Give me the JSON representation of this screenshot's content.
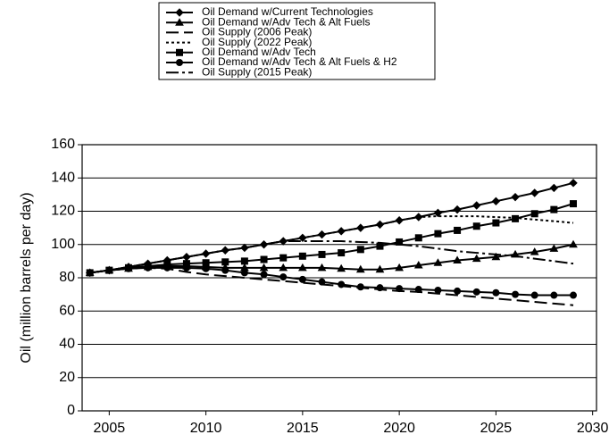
{
  "chart_data": {
    "type": "line",
    "y_label": "Oil (million barrels per day)",
    "x": [
      2004,
      2005,
      2006,
      2007,
      2008,
      2009,
      2010,
      2011,
      2012,
      2013,
      2014,
      2015,
      2016,
      2017,
      2018,
      2019,
      2020,
      2021,
      2022,
      2023,
      2024,
      2025,
      2026,
      2027,
      2028,
      2029
    ],
    "xlim": [
      2003.6,
      2030.2
    ],
    "xticks": [
      2005,
      2010,
      2015,
      2020,
      2025,
      2030
    ],
    "ylim": [
      0,
      160
    ],
    "yticks": [
      0,
      20,
      40,
      60,
      80,
      100,
      120,
      140,
      160
    ],
    "grid": true,
    "legend": "top",
    "series": [
      {
        "name": "Oil Demand w/Current Technologies",
        "color": "#000000",
        "marker": "diamond",
        "dash": "solid",
        "values": [
          83,
          84.5,
          86.5,
          88.5,
          90.5,
          92.5,
          94.5,
          96.5,
          98,
          100,
          102,
          104,
          106,
          108,
          110,
          112,
          114.5,
          116.5,
          119,
          121,
          123.5,
          126,
          128.5,
          131,
          134,
          137
        ]
      },
      {
        "name": "Oil Demand w/Adv Tech & Alt Fuels",
        "color": "#000000",
        "marker": "triangle",
        "dash": "solid",
        "values": [
          83,
          84.5,
          85.5,
          86.5,
          87,
          87,
          86.5,
          86,
          86,
          86,
          86,
          86,
          86,
          85.5,
          85,
          85,
          86,
          87.5,
          89,
          90.5,
          91.5,
          92.5,
          94,
          95.5,
          97.5,
          100
        ]
      },
      {
        "name": "Oil Supply (2006 Peak)",
        "color": "#000000",
        "marker": "none",
        "dash": "long",
        "values": [
          83,
          84.5,
          85.5,
          86,
          85.5,
          83.5,
          82,
          81,
          80,
          79,
          78,
          77,
          76,
          75,
          74,
          73,
          72,
          71.5,
          70.5,
          69.5,
          68.5,
          67.5,
          66.5,
          65.5,
          64.5,
          63.5
        ]
      },
      {
        "name": "Oil Supply (2022 Peak)",
        "color": "#000000",
        "marker": "none",
        "dash": "short",
        "values": [
          83,
          84.5,
          86.5,
          88.5,
          90.5,
          92.5,
          94.5,
          96.5,
          98,
          100,
          102,
          104,
          106,
          108,
          110,
          112,
          114.5,
          116.5,
          117,
          117,
          117,
          116.5,
          116,
          115,
          114,
          113
        ]
      },
      {
        "name": "Oil Demand w/Adv Tech",
        "color": "#000000",
        "marker": "square",
        "dash": "solid",
        "values": [
          83,
          84.5,
          86,
          87,
          88,
          88.5,
          89,
          89.5,
          90,
          91,
          92,
          93,
          94,
          95,
          97,
          99,
          101.5,
          104,
          106.5,
          108.5,
          111,
          113,
          115.5,
          118.5,
          121,
          124.5
        ]
      },
      {
        "name": "Oil Demand w/Adv Tech & Alt Fuels & H2",
        "color": "#000000",
        "marker": "circle",
        "dash": "solid",
        "values": [
          83,
          84.5,
          85.5,
          86,
          86,
          86,
          85.5,
          84.5,
          83,
          82,
          80.5,
          79,
          77.5,
          76,
          74.5,
          74,
          73.5,
          73,
          72.5,
          72,
          71.5,
          71,
          70,
          69.5,
          69.5,
          69.5
        ]
      },
      {
        "name": "Oil Supply (2015 Peak)",
        "color": "#000000",
        "marker": "none",
        "dash": "dashdot",
        "values": [
          83,
          84.5,
          86.5,
          88.5,
          90.5,
          92.5,
          94.5,
          96.5,
          98,
          100,
          102,
          102,
          102,
          102,
          101.5,
          101,
          100,
          99,
          97.5,
          96,
          95,
          94,
          93,
          91.5,
          90,
          88.5
        ]
      }
    ]
  }
}
